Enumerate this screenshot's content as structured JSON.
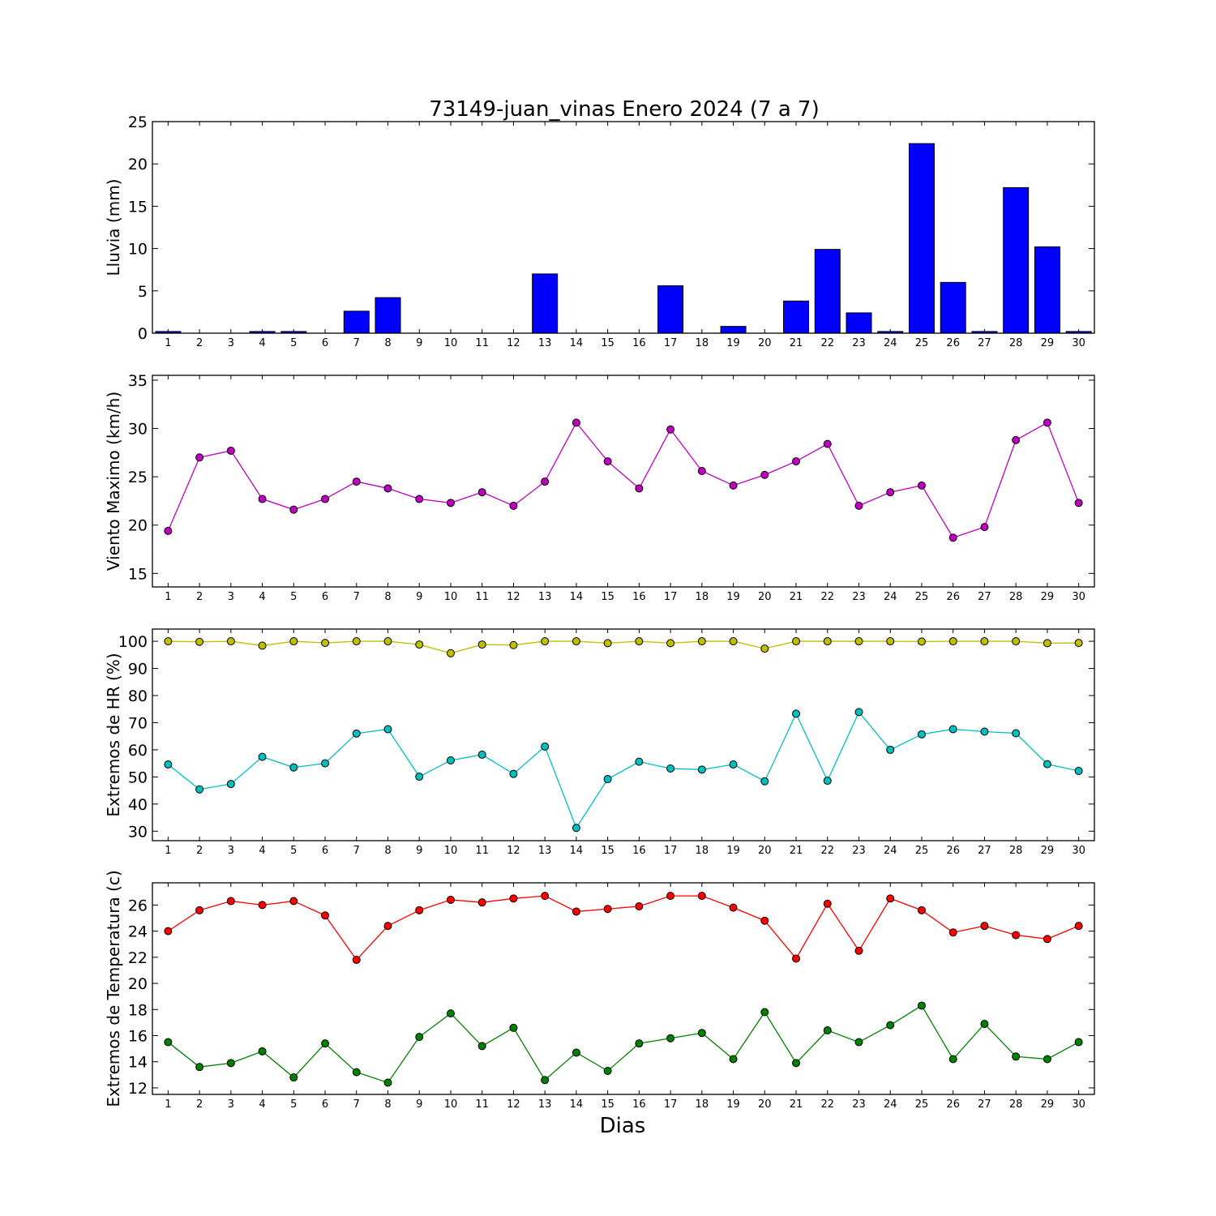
{
  "title": "73149-juan_vinas Enero 2024  (7 a 7)",
  "xlabel": "Dias",
  "chart_data": [
    {
      "type": "bar",
      "ylabel": "Lluvia (mm)",
      "ylim": [
        0,
        25
      ],
      "yticks": [
        0,
        5,
        10,
        15,
        20,
        25
      ],
      "categories": [
        1,
        2,
        3,
        4,
        5,
        6,
        7,
        8,
        9,
        10,
        11,
        12,
        13,
        14,
        15,
        16,
        17,
        18,
        19,
        20,
        21,
        22,
        23,
        24,
        25,
        26,
        27,
        28,
        29,
        30
      ],
      "series": [
        {
          "values": [
            0.2,
            0,
            0,
            0.2,
            0.2,
            0,
            2.6,
            4.2,
            0,
            0,
            0,
            0,
            7.0,
            0,
            0,
            0,
            5.6,
            0,
            0.8,
            0,
            3.8,
            9.9,
            2.4,
            0.2,
            22.4,
            6.0,
            0.2,
            17.2,
            10.2,
            0.2
          ],
          "color": "#0000ff"
        }
      ]
    },
    {
      "type": "line",
      "ylabel": "Viento Maximo (km/h)",
      "ylim": [
        13.6,
        35.5
      ],
      "yticks": [
        15,
        20,
        25,
        30,
        35
      ],
      "categories": [
        1,
        2,
        3,
        4,
        5,
        6,
        7,
        8,
        9,
        10,
        11,
        12,
        13,
        14,
        15,
        16,
        17,
        18,
        19,
        20,
        21,
        22,
        23,
        24,
        25,
        26,
        27,
        28,
        29,
        30
      ],
      "series": [
        {
          "values": [
            19.4,
            27.0,
            27.7,
            22.7,
            21.6,
            22.7,
            24.5,
            23.8,
            22.7,
            22.3,
            23.4,
            22.0,
            24.5,
            30.6,
            26.6,
            23.8,
            29.9,
            25.6,
            24.1,
            25.2,
            26.6,
            28.4,
            22.0,
            23.4,
            24.1,
            18.7,
            19.8,
            28.8,
            30.6,
            22.3
          ],
          "color": "#bf00bf"
        }
      ]
    },
    {
      "type": "line",
      "ylabel": "Extremos de HR (%)",
      "ylim": [
        26.5,
        104.5
      ],
      "yticks": [
        30,
        40,
        50,
        60,
        70,
        80,
        90,
        100
      ],
      "categories": [
        1,
        2,
        3,
        4,
        5,
        6,
        7,
        8,
        9,
        10,
        11,
        12,
        13,
        14,
        15,
        16,
        17,
        18,
        19,
        20,
        21,
        22,
        23,
        24,
        25,
        26,
        27,
        28,
        29,
        30
      ],
      "series": [
        {
          "values": [
            100,
            99.8,
            100,
            98.4,
            100,
            99.4,
            100,
            100,
            98.8,
            95.6,
            98.8,
            98.6,
            100,
            100,
            99.3,
            100,
            99.3,
            100,
            100,
            97.3,
            100,
            100,
            100,
            100,
            99.9,
            100,
            100,
            100,
            99.3,
            99.4
          ],
          "color": "#bfbf00"
        },
        {
          "values": [
            54.6,
            45.4,
            47.4,
            57.4,
            53.5,
            55.0,
            66.0,
            67.6,
            50.1,
            56.1,
            58.2,
            51.1,
            61.2,
            31.2,
            49.2,
            55.6,
            53.1,
            52.7,
            54.6,
            48.4,
            73.3,
            48.6,
            73.9,
            60.0,
            65.7,
            67.6,
            66.7,
            66.1,
            54.7,
            52.2
          ],
          "color": "#00bfbf"
        }
      ]
    },
    {
      "type": "line",
      "ylabel": "Extremos de Temperatura (c)",
      "ylim": [
        11.5,
        27.7
      ],
      "yticks": [
        12,
        14,
        16,
        18,
        20,
        22,
        24,
        26
      ],
      "categories": [
        1,
        2,
        3,
        4,
        5,
        6,
        7,
        8,
        9,
        10,
        11,
        12,
        13,
        14,
        15,
        16,
        17,
        18,
        19,
        20,
        21,
        22,
        23,
        24,
        25,
        26,
        27,
        28,
        29,
        30
      ],
      "series": [
        {
          "values": [
            24.0,
            25.6,
            26.3,
            26.0,
            26.3,
            25.2,
            21.8,
            24.4,
            25.6,
            26.4,
            26.2,
            26.5,
            26.7,
            25.5,
            25.7,
            25.9,
            26.7,
            26.7,
            25.8,
            24.8,
            21.9,
            26.1,
            22.5,
            26.5,
            25.6,
            23.9,
            24.4,
            23.7,
            23.4,
            24.4
          ],
          "color": "#ff0000"
        },
        {
          "values": [
            15.5,
            13.6,
            13.9,
            14.8,
            12.8,
            15.4,
            13.2,
            12.4,
            15.9,
            17.7,
            15.2,
            16.6,
            12.6,
            14.7,
            13.3,
            15.4,
            15.8,
            16.2,
            14.2,
            17.8,
            13.9,
            16.4,
            15.5,
            16.8,
            18.3,
            14.2,
            16.9,
            14.4,
            14.2,
            15.5
          ],
          "color": "#008000"
        }
      ]
    }
  ]
}
